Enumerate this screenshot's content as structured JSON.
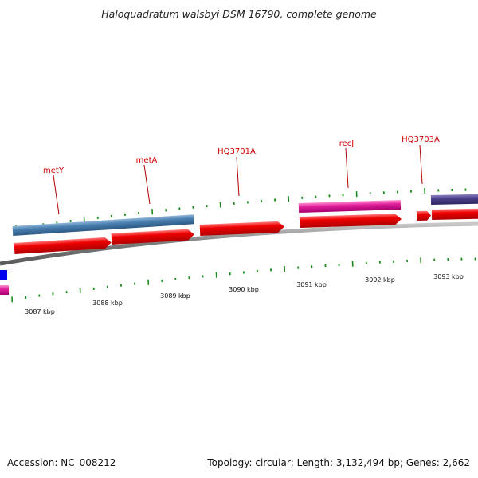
{
  "title": "Haloquadratum walsbyi DSM 16790, complete genome",
  "footer": {
    "accession": "Accession: NC_008212",
    "summary": "Topology: circular; Length: 3,132,494 bp; Genes: 2,662"
  },
  "gene_labels": {
    "metY": "metY",
    "metA": "metA",
    "hq3701a": "HQ3701A",
    "recJ": "recJ",
    "hq3703a": "HQ3703A"
  },
  "kbp_labels": {
    "k3087": "3087 kbp",
    "k3088": "3088 kbp",
    "k3089": "3089 kbp",
    "k3090": "3090 kbp",
    "k3091": "3091 kbp",
    "k3092": "3092 kbp",
    "k3093": "3093 kbp"
  },
  "colors": {
    "backbone": "#8a8a8a",
    "tick": "#1a8a1a",
    "cds": "#ee0000",
    "gene_blue": "#4a7fb0",
    "gene_magenta": "#e0209a",
    "gene_purple": "#4a3f8a",
    "blue_block": "#0000ee",
    "label": "#d40000"
  }
}
